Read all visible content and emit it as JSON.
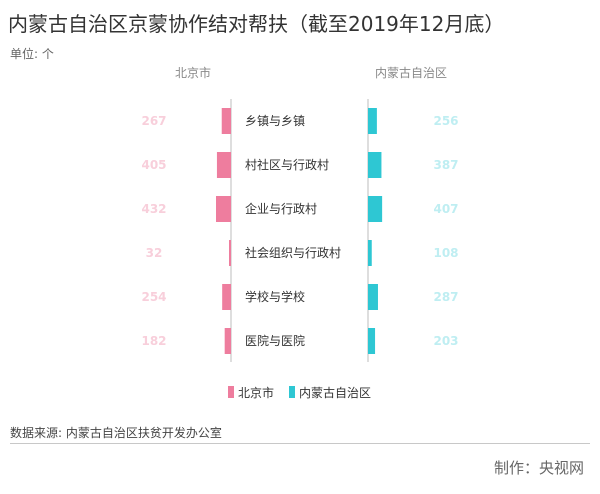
{
  "title": "内蒙古自治区京蒙协作结对帮扶（截至2019年12月底）",
  "unit": "单位: 个",
  "source": "数据来源: 内蒙古自治区扶贫开发办公室",
  "credit": "制作：央视网",
  "colors": {
    "left": "#ee7d9e",
    "right": "#2ec7d3",
    "left_label": "#f8cfdb",
    "right_label": "#bfeef2",
    "divider": "#bdbdbd"
  },
  "chart_data": {
    "type": "bar",
    "orientation": "butterfly",
    "categories": [
      "乡镇与乡镇",
      "村社区与行政村",
      "企业与行政村",
      "社会组织与行政村",
      "学校与学校",
      "医院与医院"
    ],
    "series": [
      {
        "name": "北京市",
        "values": [
          267,
          405,
          432,
          32,
          254,
          182
        ]
      },
      {
        "name": "内蒙古自治区",
        "values": [
          256,
          387,
          407,
          108,
          287,
          203
        ]
      }
    ],
    "left_header": "北京市",
    "right_header": "内蒙古自治区",
    "legend": [
      "北京市",
      "内蒙古自治区"
    ],
    "legend_position": "bottom-center"
  }
}
